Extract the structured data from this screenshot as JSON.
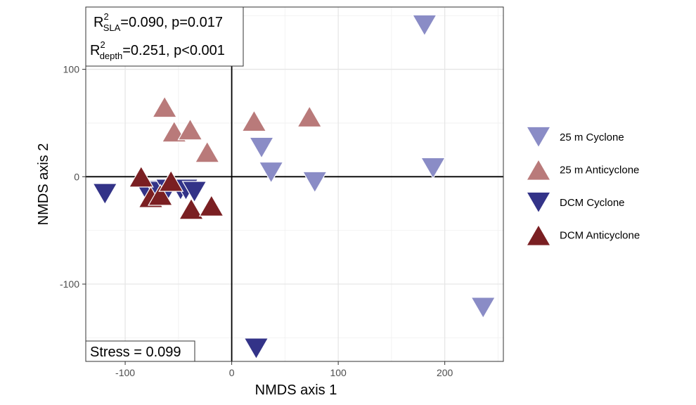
{
  "chart_data": {
    "type": "scatter",
    "xlabel": "NMDS axis 1",
    "ylabel": "NMDS axis 2",
    "xlim": [
      -137,
      255
    ],
    "ylim": [
      -172,
      158
    ],
    "xticks": [
      -100,
      0,
      100,
      200
    ],
    "yticks": [
      -100,
      0,
      100
    ],
    "xtick_labels": [
      "-100",
      "0",
      "100",
      "200"
    ],
    "ytick_labels": [
      "-100",
      "0",
      "100"
    ],
    "grid": true,
    "reference_lines": {
      "x": 0,
      "y": 0
    },
    "legend_position": "right",
    "series": [
      {
        "name": "25 m Cyclone",
        "marker": "triangle-down",
        "color": "#8a8cc6",
        "points": [
          [
            181,
            141
          ],
          [
            28,
            27
          ],
          [
            37,
            4
          ],
          [
            78,
            -5
          ],
          [
            189,
            8
          ],
          [
            236,
            -122
          ]
        ]
      },
      {
        "name": "25 m Anticyclone",
        "marker": "triangle-up",
        "color": "#b97a7a",
        "points": [
          [
            -63,
            65
          ],
          [
            -54,
            42
          ],
          [
            -39,
            44
          ],
          [
            -23,
            23
          ],
          [
            21,
            52
          ],
          [
            73,
            56
          ]
        ]
      },
      {
        "name": "DCM Cyclone",
        "marker": "triangle-down",
        "color": "#333388",
        "points": [
          [
            -119,
            -16
          ],
          [
            -80,
            -13
          ],
          [
            -70,
            -14
          ],
          [
            -60,
            -12
          ],
          [
            -48,
            -12
          ],
          [
            -43,
            -12
          ],
          [
            -35,
            -14
          ],
          [
            23,
            -160
          ]
        ]
      },
      {
        "name": "DCM Anticyclone",
        "marker": "triangle-up",
        "color": "#7a1f22",
        "points": [
          [
            -85,
            0
          ],
          [
            -76,
            -19
          ],
          [
            -67,
            -17
          ],
          [
            -57,
            -4
          ],
          [
            -38,
            -30
          ],
          [
            -19,
            -27
          ]
        ]
      }
    ],
    "annotations": {
      "r2_sla": {
        "label_main": "R",
        "sup": "2",
        "sub": "SLA",
        "text": "=0.090, p=0.017"
      },
      "r2_depth": {
        "label_main": "R",
        "sup": "2",
        "sub": "depth",
        "text": "=0.251, p<0.001"
      },
      "stress": "Stress = 0.099"
    }
  }
}
